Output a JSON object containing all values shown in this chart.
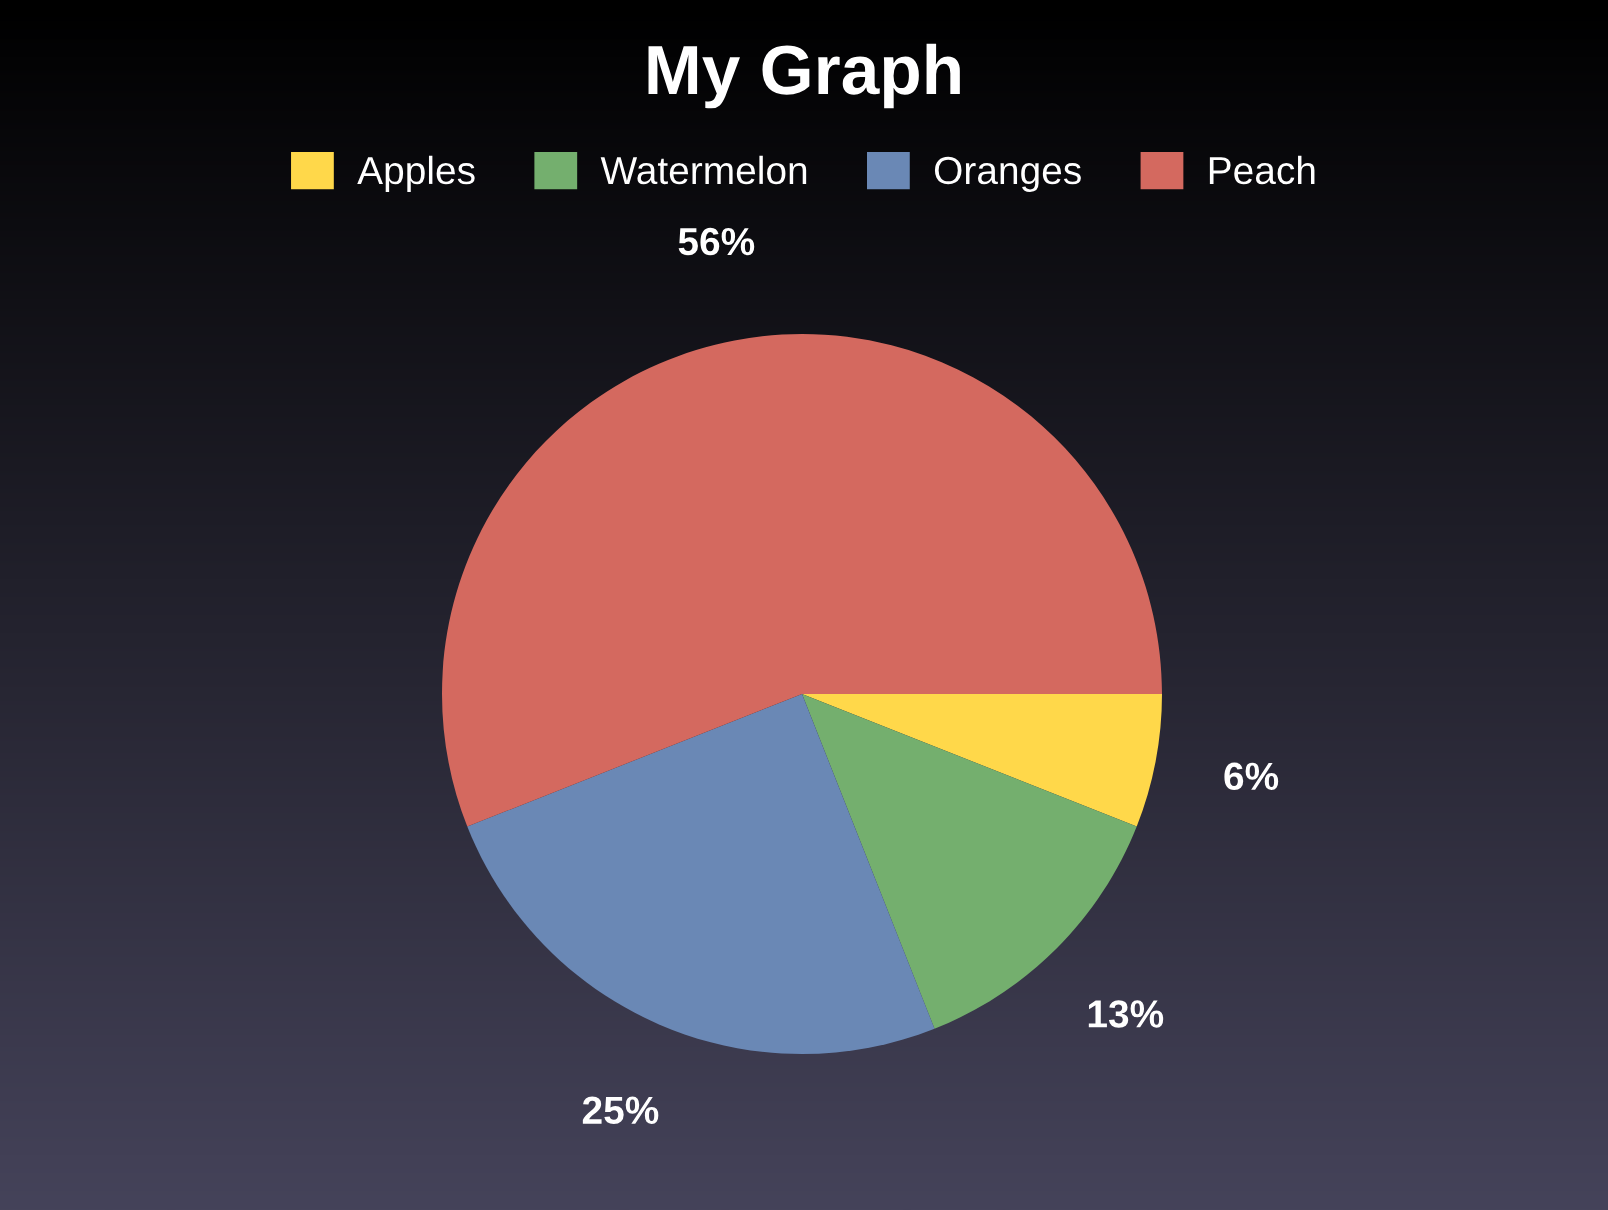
{
  "chart_data": {
    "type": "pie",
    "title": "My Graph",
    "categories": [
      "Apples",
      "Watermelon",
      "Oranges",
      "Peach"
    ],
    "values": [
      6,
      13,
      25,
      56
    ],
    "colors": [
      "#ffd84a",
      "#74af6e",
      "#6a88b5",
      "#d4695f"
    ],
    "value_labels": [
      "6%",
      "13%",
      "25%",
      "56%"
    ],
    "legend": "top"
  }
}
